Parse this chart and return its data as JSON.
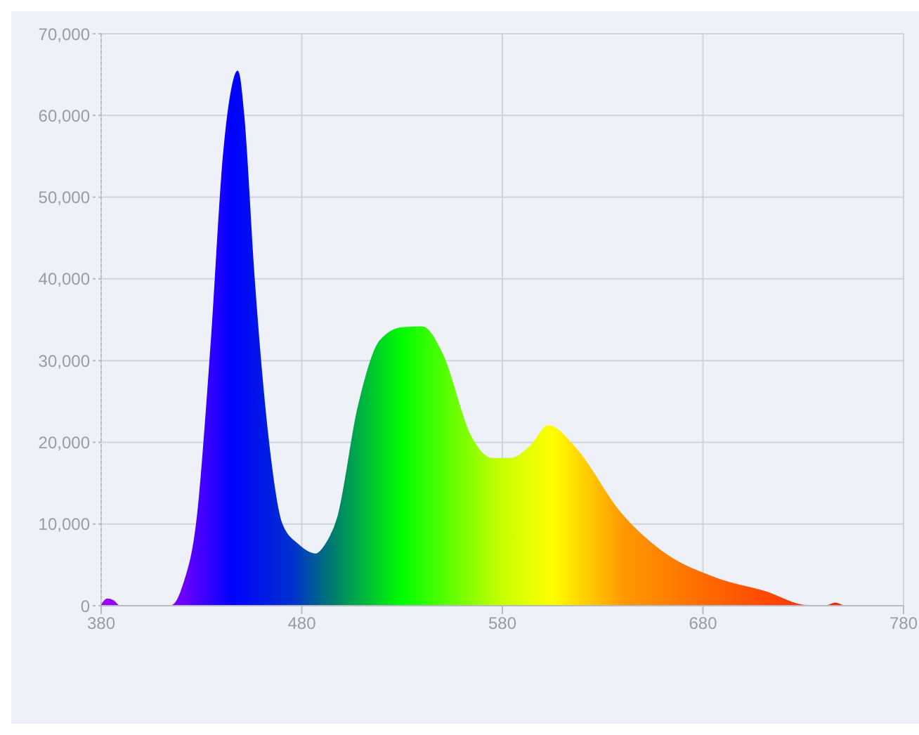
{
  "chart_data": {
    "type": "area",
    "x": [
      380,
      383,
      386,
      389,
      392,
      415,
      421,
      428,
      435,
      441,
      445,
      448,
      451,
      456,
      463,
      470,
      478,
      487,
      492,
      498,
      508,
      519,
      530,
      540,
      550,
      564,
      575,
      584,
      594,
      603,
      617,
      638,
      659,
      687,
      711,
      732,
      742,
      746,
      750,
      780
    ],
    "series": [
      {
        "values": [
          0,
          800,
          600,
          0,
          0,
          0,
          2500,
          10800,
          32400,
          55000,
          63000,
          65400,
          60000,
          40700,
          20800,
          10000,
          7500,
          6300,
          7500,
          10800,
          24100,
          32400,
          34000,
          34100,
          30800,
          20800,
          18000,
          18000,
          19500,
          22000,
          19100,
          11600,
          6700,
          3300,
          1700,
          0,
          0,
          300,
          0,
          0
        ]
      }
    ],
    "xlim": [
      380,
      780
    ],
    "xticks": [
      380,
      480,
      580,
      680,
      780
    ],
    "ylim": [
      0,
      70000
    ],
    "yticks": [
      0,
      {
        "value": 10000,
        "label": "10,000"
      },
      {
        "value": 20000,
        "label": "20,000"
      },
      {
        "value": 30000,
        "label": "30,000"
      },
      {
        "value": 40000,
        "label": "40,000"
      },
      {
        "value": 50000,
        "label": "50,000"
      },
      {
        "value": 60000,
        "label": "60,000"
      },
      {
        "value": 70000,
        "label": "70,000"
      }
    ],
    "grid": true,
    "legend": false
  }
}
